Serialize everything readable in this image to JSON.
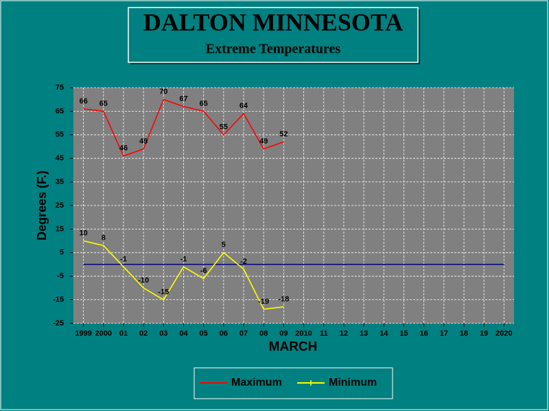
{
  "chart_data": {
    "type": "line",
    "title": "DALTON MINNESOTA",
    "subtitle": "Extreme Temperatures",
    "x_label": "MARCH",
    "y_label": "Degrees (F.)",
    "categories": [
      "1999",
      "2000",
      "01",
      "02",
      "03",
      "04",
      "05",
      "06",
      "07",
      "08",
      "09",
      "2010",
      "11",
      "12",
      "13",
      "14",
      "15",
      "16",
      "17",
      "18",
      "19",
      "2020"
    ],
    "series": [
      {
        "name": "Maximum",
        "color": "#ff0000",
        "values": [
          66,
          65,
          46,
          49,
          70,
          67,
          65,
          55,
          64,
          49,
          52,
          null,
          null,
          null,
          null,
          null,
          null,
          null,
          null,
          null,
          null,
          null
        ]
      },
      {
        "name": "Minimum",
        "color": "#ffff00",
        "values": [
          10,
          8,
          -1,
          -10,
          -15,
          -1,
          -6,
          5,
          -2,
          -19,
          -18,
          null,
          null,
          null,
          null,
          null,
          null,
          null,
          null,
          null,
          null,
          null
        ]
      }
    ],
    "reference_line": {
      "value": 0,
      "color": "#000080"
    },
    "ylim": [
      -25,
      75
    ],
    "yticks": [
      -25,
      -15,
      -5,
      5,
      15,
      25,
      35,
      45,
      55,
      65,
      75
    ],
    "grid": true,
    "legend": "bottom"
  }
}
